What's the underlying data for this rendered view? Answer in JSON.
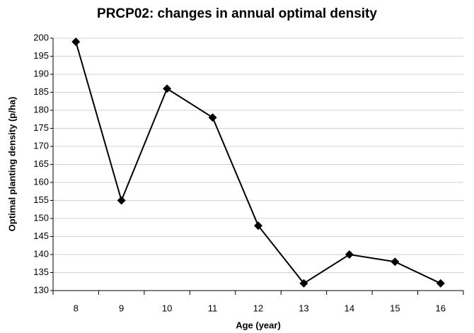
{
  "chart_data": {
    "type": "line",
    "title": "PRCP02: changes in annual optimal density",
    "x_label": "Age (year)",
    "y_label": "Optimal planting density (p/ha)",
    "categories": [
      "8",
      "9",
      "10",
      "11",
      "12",
      "13",
      "14",
      "15",
      "16"
    ],
    "values": [
      199,
      155,
      186,
      178,
      148,
      132,
      140,
      138,
      132
    ],
    "color": "#000000",
    "marker": "diamond",
    "ylim": [
      130,
      200
    ],
    "yticks": [
      130,
      135,
      140,
      145,
      150,
      155,
      160,
      165,
      170,
      175,
      180,
      185,
      190,
      195,
      200
    ],
    "grid": true
  }
}
